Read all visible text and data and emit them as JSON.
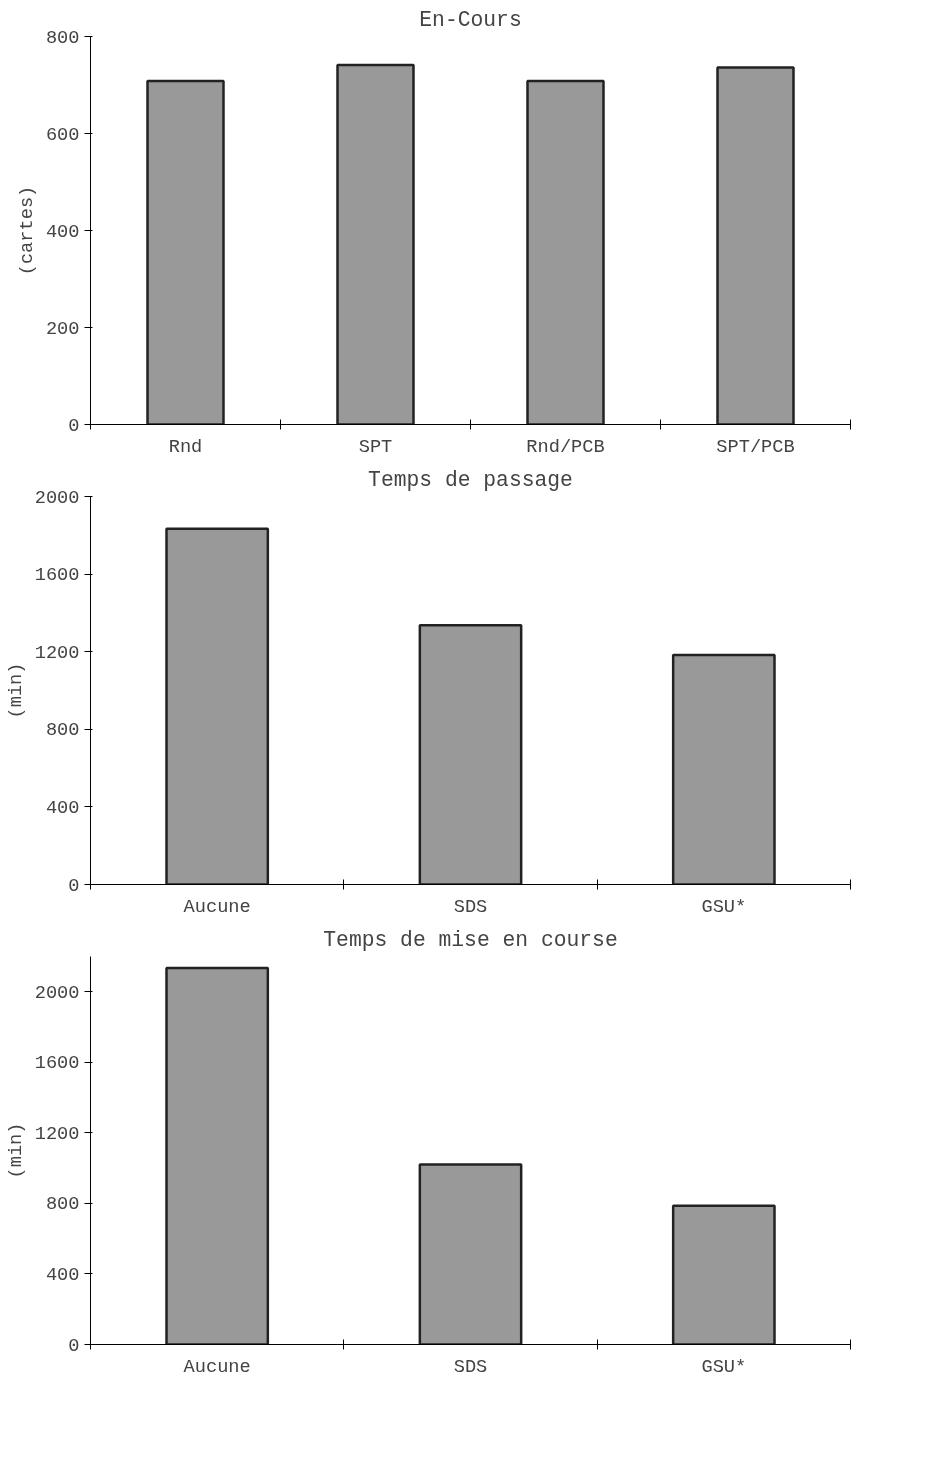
{
  "chart_data": [
    {
      "type": "bar",
      "title": "En-Cours",
      "ylabel": "(cartes)",
      "categories": [
        "Rnd",
        "SPT",
        "Rnd/PCB",
        "SPT/PCB"
      ],
      "values": [
        708,
        741,
        708,
        736
      ],
      "color": "#999999",
      "ylim": [
        0,
        800
      ],
      "yticks": [
        0,
        200,
        400,
        600,
        800
      ],
      "grid": false
    },
    {
      "type": "bar",
      "title": "Temps de passage",
      "ylabel": "(min)",
      "categories": [
        "Aucune",
        "SDS",
        "GSU*"
      ],
      "values": [
        1834,
        1336,
        1183
      ],
      "color": "#999999",
      "ylim": [
        0,
        2000
      ],
      "yticks": [
        0,
        400,
        800,
        1200,
        1600,
        2000
      ],
      "grid": false
    },
    {
      "type": "bar",
      "title": "Temps de mise en course",
      "ylabel": "(min)",
      "categories": [
        "Aucune",
        "SDS",
        "GSU*"
      ],
      "values": [
        2135,
        1021,
        787
      ],
      "color": "#999999",
      "ylim": [
        0,
        2200
      ],
      "yticks": [
        0,
        400,
        800,
        1200,
        1600,
        2000
      ],
      "grid": false
    }
  ]
}
